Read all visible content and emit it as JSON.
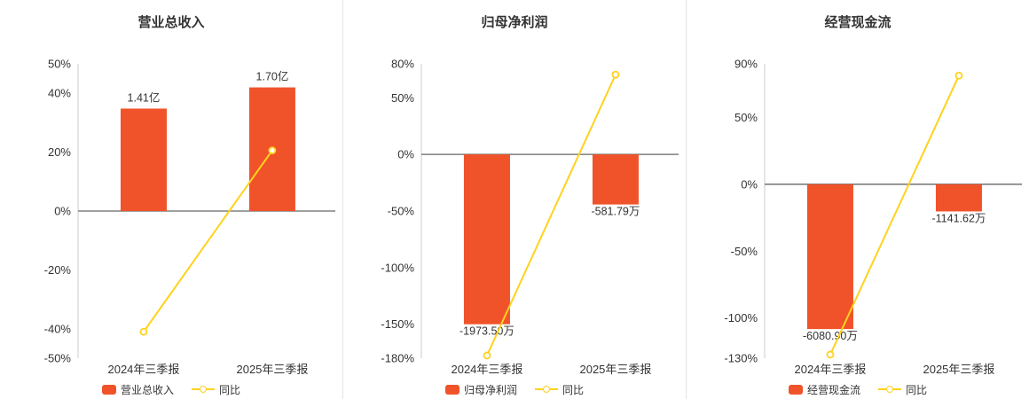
{
  "colors": {
    "bar": "#f0532a",
    "line": "#ffd21e",
    "zero_axis": "#666666",
    "axis": "#cccccc",
    "text": "#333333",
    "divider": "#e4e4e4",
    "background": "#ffffff"
  },
  "chart_data": [
    {
      "type": "bar+line",
      "title": "营业总收入",
      "categories": [
        "2024年三季报",
        "2025年三季报"
      ],
      "ylim": [
        -50,
        50
      ],
      "yticks": [
        50,
        40,
        20,
        0,
        -20,
        -40,
        -50
      ],
      "ytick_suffix": "%",
      "grid": false,
      "legend_position": "bottom",
      "bar_series": {
        "name": "营业总收入",
        "value_labels": [
          "1.41亿",
          "1.70亿"
        ],
        "plotted_pct": [
          34.8,
          42.0
        ]
      },
      "line_series": {
        "name": "同比",
        "values_pct": [
          -41.0,
          20.6
        ]
      }
    },
    {
      "type": "bar+line",
      "title": "归母净利润",
      "categories": [
        "2024年三季报",
        "2025年三季报"
      ],
      "ylim": [
        -180,
        80
      ],
      "yticks": [
        80,
        50,
        0,
        -50,
        -100,
        -150,
        -180
      ],
      "ytick_suffix": "%",
      "grid": false,
      "legend_position": "bottom",
      "bar_series": {
        "name": "归母净利润",
        "value_labels": [
          "-1973.50万",
          "-581.79万"
        ],
        "plotted_pct": [
          -150,
          -44.2
        ]
      },
      "line_series": {
        "name": "同比",
        "values_pct": [
          -177.6,
          70.5
        ]
      }
    },
    {
      "type": "bar+line",
      "title": "经营现金流",
      "categories": [
        "2024年三季报",
        "2025年三季报"
      ],
      "ylim": [
        -130,
        90
      ],
      "yticks": [
        90,
        50,
        0,
        -50,
        -100,
        -130
      ],
      "ytick_suffix": "%",
      "grid": false,
      "legend_position": "bottom",
      "bar_series": {
        "name": "经营现金流",
        "value_labels": [
          "-6080.90万",
          "-1141.62万"
        ],
        "plotted_pct": [
          -108.2,
          -20.3
        ]
      },
      "line_series": {
        "name": "同比",
        "values_pct": [
          -127.3,
          81.2
        ]
      }
    }
  ]
}
